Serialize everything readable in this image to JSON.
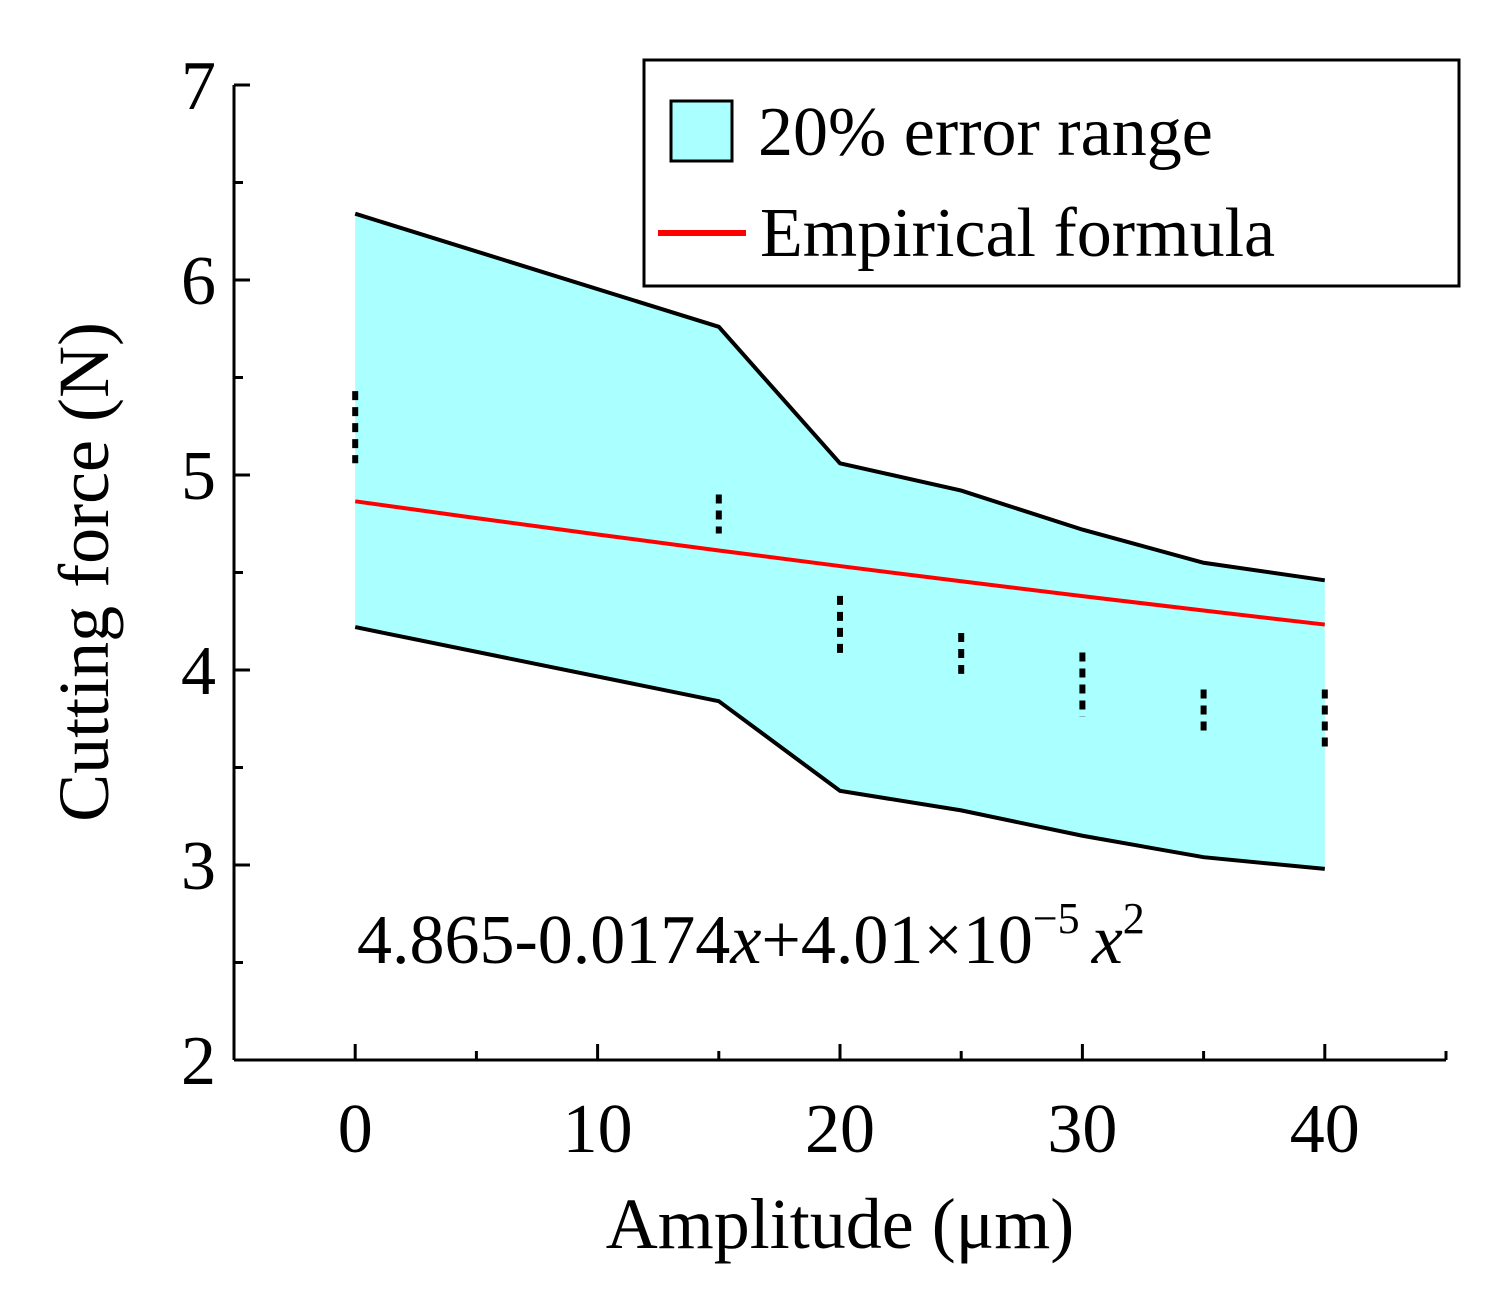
{
  "chart_data": {
    "type": "line",
    "xlabel": "Amplitude (μm)",
    "ylabel": "Cutting force (N)",
    "xlim": [
      -5,
      45
    ],
    "ylim": [
      2,
      7
    ],
    "x_ticks": [
      0,
      10,
      20,
      30,
      40
    ],
    "x_minor_ticks": [
      -5,
      5,
      15,
      25,
      35,
      45
    ],
    "y_ticks": [
      2,
      3,
      4,
      5,
      6,
      7
    ],
    "y_minor_ticks": [
      2.5,
      3.5,
      4.5,
      5.5,
      6.5
    ],
    "grid": false,
    "legend_position": "top-right",
    "legend": {
      "band_label": "20% error range",
      "line_label": "Empirical formula"
    },
    "colors": {
      "band_fill": "#aaffff",
      "band_edge": "#000000",
      "formula_line": "#ff0000",
      "markers": "#000000"
    },
    "error_band": {
      "x": [
        0,
        15,
        20,
        25,
        30,
        35,
        40
      ],
      "upper": [
        6.34,
        5.76,
        5.06,
        4.92,
        4.72,
        4.55,
        4.46
      ],
      "lower": [
        4.22,
        3.84,
        3.38,
        3.28,
        3.15,
        3.04,
        2.98
      ]
    },
    "empirical_formula": {
      "x": [
        0,
        5,
        10,
        15,
        20,
        25,
        30,
        35,
        40
      ],
      "y": [
        4.865,
        4.779,
        4.695,
        4.613,
        4.533,
        4.455,
        4.379,
        4.305,
        4.233
      ]
    },
    "measured": {
      "x": [
        0,
        15,
        20,
        25,
        30,
        35,
        40
      ],
      "y_min": [
        5.06,
        4.7,
        4.06,
        3.98,
        3.76,
        3.66,
        3.58
      ],
      "y_max": [
        5.43,
        4.9,
        4.38,
        4.19,
        4.09,
        3.9,
        3.9
      ]
    },
    "annotation": {
      "text": "4.865-0.0174x+4.01×10^-5x^2",
      "part1": "4.865-0.0174",
      "var1": "x",
      "part2": "+4.01×10",
      "exp1": "−5",
      "var2": "x",
      "exp2": "2"
    }
  }
}
